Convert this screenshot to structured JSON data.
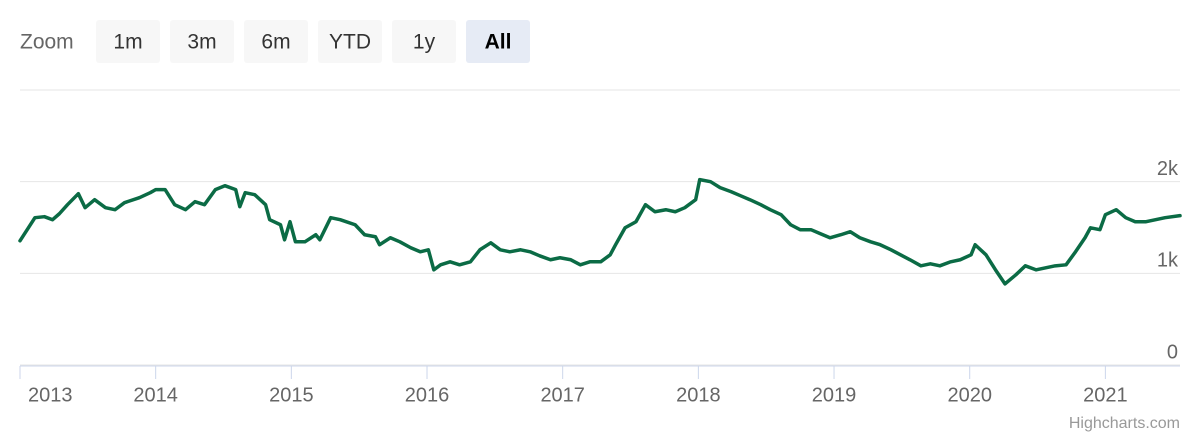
{
  "chart_data": {
    "type": "line",
    "range_selector": {
      "label": "Zoom",
      "buttons": [
        "1m",
        "3m",
        "6m",
        "YTD",
        "1y",
        "All"
      ],
      "selected": 5
    },
    "credits": "Highcharts.com",
    "xlim": [
      2013,
      2021.55
    ],
    "xticks": [
      2013,
      2014,
      2015,
      2016,
      2017,
      2018,
      2019,
      2020,
      2021
    ],
    "ylim": [
      0,
      3000
    ],
    "yticks": [
      {
        "value": 0,
        "label": "0"
      },
      {
        "value": 1000,
        "label": "1k"
      },
      {
        "value": 2000,
        "label": "2k"
      }
    ],
    "grid": true,
    "color": "#0b6b45",
    "x": [
      2013.0,
      2013.11,
      2013.18,
      2013.24,
      2013.29,
      2013.35,
      2013.43,
      2013.48,
      2013.55,
      2013.63,
      2013.7,
      2013.77,
      2013.88,
      2013.96,
      2014.0,
      2014.07,
      2014.14,
      2014.22,
      2014.29,
      2014.36,
      2014.44,
      2014.51,
      2014.59,
      2014.62,
      2014.66,
      2014.73,
      2014.81,
      2014.84,
      2014.92,
      2014.95,
      2014.99,
      2015.03,
      2015.1,
      2015.18,
      2015.21,
      2015.29,
      2015.36,
      2015.47,
      2015.54,
      2015.62,
      2015.65,
      2015.73,
      2015.8,
      2015.88,
      2015.95,
      2016.01,
      2016.05,
      2016.1,
      2016.17,
      2016.24,
      2016.32,
      2016.39,
      2016.47,
      2016.54,
      2016.61,
      2016.69,
      2016.76,
      2016.83,
      2016.91,
      2016.98,
      2017.06,
      2017.13,
      2017.2,
      2017.28,
      2017.35,
      2017.39,
      2017.46,
      2017.54,
      2017.61,
      2017.68,
      2017.76,
      2017.83,
      2017.9,
      2017.98,
      2018.01,
      2018.09,
      2018.16,
      2018.24,
      2018.31,
      2018.38,
      2018.46,
      2018.53,
      2018.61,
      2018.68,
      2018.75,
      2018.83,
      2018.9,
      2018.97,
      2019.05,
      2019.12,
      2019.19,
      2019.27,
      2019.34,
      2019.42,
      2019.49,
      2019.56,
      2019.64,
      2019.71,
      2019.78,
      2019.86,
      2019.93,
      2020.01,
      2020.04,
      2020.12,
      2020.19,
      2020.26,
      2020.34,
      2020.41,
      2020.49,
      2020.56,
      2020.63,
      2020.71,
      2020.78,
      2020.85,
      2020.89,
      2020.96,
      2021.0,
      2021.08,
      2021.15,
      2021.22,
      2021.3,
      2021.37,
      2021.44,
      2021.55
    ],
    "values": [
      1355,
      1607,
      1618,
      1585,
      1650,
      1749,
      1869,
      1716,
      1803,
      1716,
      1694,
      1771,
      1825,
      1880,
      1913,
      1913,
      1749,
      1694,
      1782,
      1749,
      1913,
      1956,
      1913,
      1727,
      1880,
      1858,
      1749,
      1585,
      1530,
      1366,
      1563,
      1344,
      1344,
      1421,
      1366,
      1607,
      1585,
      1530,
      1421,
      1399,
      1312,
      1388,
      1344,
      1279,
      1235,
      1257,
      1038,
      1093,
      1126,
      1093,
      1126,
      1257,
      1333,
      1257,
      1235,
      1257,
      1235,
      1191,
      1148,
      1170,
      1148,
      1093,
      1126,
      1126,
      1202,
      1312,
      1497,
      1563,
      1749,
      1672,
      1694,
      1672,
      1716,
      1803,
      2022,
      2000,
      1935,
      1891,
      1847,
      1803,
      1749,
      1694,
      1640,
      1530,
      1476,
      1476,
      1432,
      1388,
      1421,
      1454,
      1388,
      1344,
      1312,
      1257,
      1202,
      1148,
      1082,
      1104,
      1082,
      1126,
      1148,
      1202,
      1312,
      1202,
      1038,
      885,
      984,
      1082,
      1038,
      1060,
      1082,
      1093,
      1235,
      1388,
      1497,
      1476,
      1640,
      1694,
      1607,
      1563,
      1563,
      1585,
      1607,
      1629
    ]
  }
}
